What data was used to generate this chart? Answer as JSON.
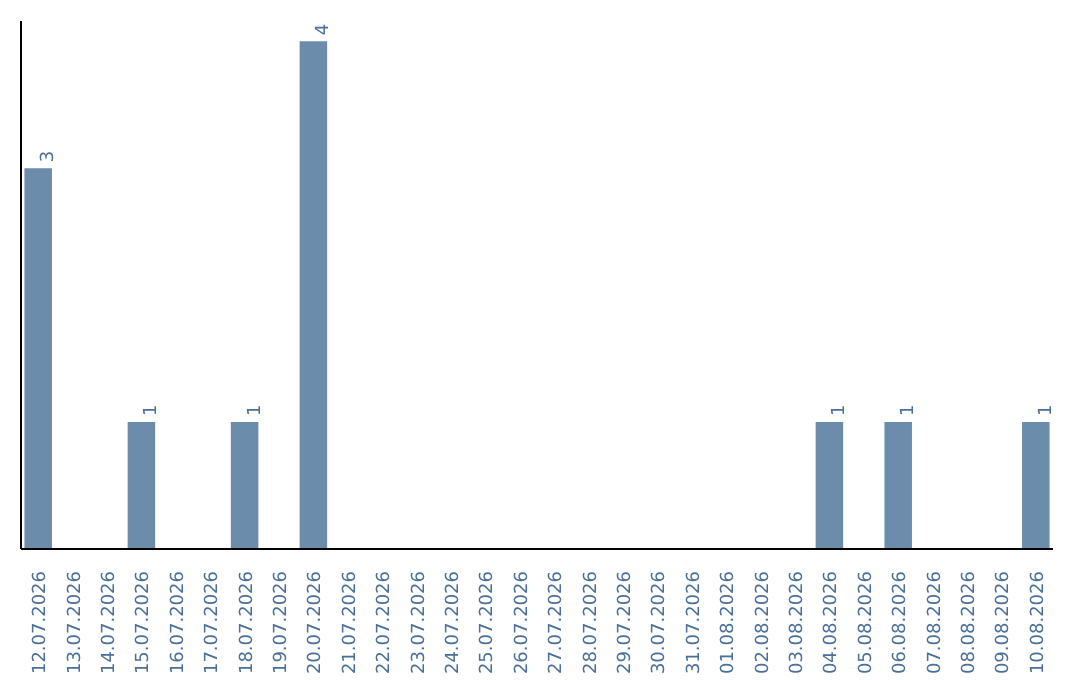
{
  "chart_data": {
    "type": "bar",
    "categories": [
      "12.07.2026",
      "13.07.2026",
      "14.07.2026",
      "15.07.2026",
      "16.07.2026",
      "17.07.2026",
      "18.07.2026",
      "19.07.2026",
      "20.07.2026",
      "21.07.2026",
      "22.07.2026",
      "23.07.2026",
      "24.07.2026",
      "25.07.2026",
      "26.07.2026",
      "27.07.2026",
      "28.07.2026",
      "29.07.2026",
      "30.07.2026",
      "31.07.2026",
      "01.08.2026",
      "02.08.2026",
      "03.08.2026",
      "04.08.2026",
      "05.08.2026",
      "06.08.2026",
      "07.08.2026",
      "08.08.2026",
      "09.08.2026",
      "10.08.2026"
    ],
    "values": [
      3,
      0,
      0,
      1,
      0,
      0,
      1,
      0,
      4,
      0,
      0,
      0,
      0,
      0,
      0,
      0,
      0,
      0,
      0,
      0,
      0,
      0,
      0,
      1,
      0,
      1,
      0,
      0,
      0,
      1
    ],
    "color": "#6b8cab",
    "value_labels": [
      "3",
      null,
      null,
      "1",
      null,
      null,
      "1",
      null,
      "4",
      null,
      null,
      null,
      null,
      null,
      null,
      null,
      null,
      null,
      null,
      null,
      null,
      null,
      null,
      "1",
      null,
      "1",
      null,
      null,
      null,
      "1"
    ],
    "grid": false
  }
}
